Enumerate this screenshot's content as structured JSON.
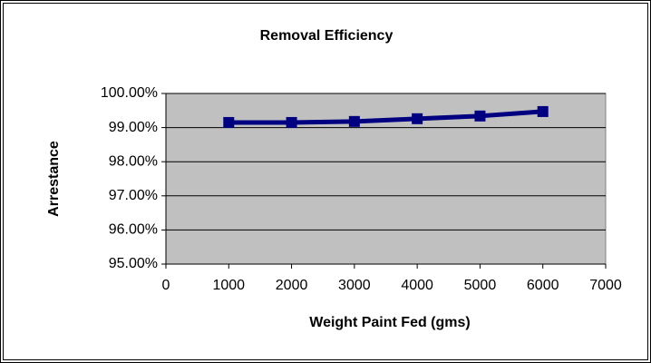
{
  "chart_data": {
    "type": "line",
    "title": "Removal Efficiency",
    "xlabel": "Weight Paint Fed (gms)",
    "ylabel": "Arrestance",
    "x": [
      1000,
      2000,
      3000,
      4000,
      5000,
      6000
    ],
    "series": [
      {
        "name": "Arrestance",
        "color": "#000080",
        "values": [
          99.15,
          99.15,
          99.18,
          99.26,
          99.34,
          99.47
        ]
      }
    ],
    "xlim": [
      0,
      7000
    ],
    "xticks": [
      0,
      1000,
      2000,
      3000,
      4000,
      5000,
      6000,
      7000
    ],
    "ylim": [
      95,
      100
    ],
    "yticks": [
      {
        "value": 95,
        "label": "95.00%"
      },
      {
        "value": 96,
        "label": "96.00%"
      },
      {
        "value": 97,
        "label": "97.00%"
      },
      {
        "value": 98,
        "label": "98.00%"
      },
      {
        "value": 99,
        "label": "99.00%"
      },
      {
        "value": 100,
        "label": "100.00%"
      }
    ],
    "grid": true,
    "plot_background": "#c0c0c0"
  }
}
